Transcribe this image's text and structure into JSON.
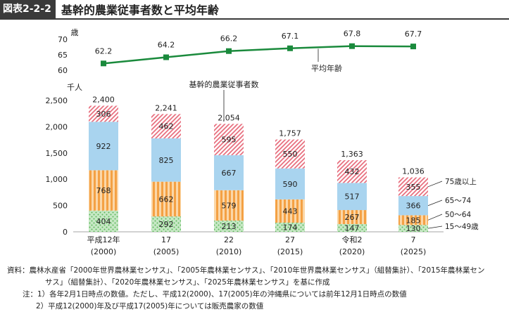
{
  "figure": {
    "label": "図表2-2-2",
    "title": "基幹的農業従事者数と平均年齢"
  },
  "colors": {
    "age75": "#e8707f",
    "age65_74": "#a9d4ef",
    "age50_64": "#f4a144",
    "age15_49": "#8ccd8a",
    "line": "#1a8a3c"
  },
  "chart_data": [
    {
      "type": "line",
      "unit_label": "歳",
      "ylim": [
        60,
        70
      ],
      "yticks": [
        "60",
        "65",
        "70"
      ],
      "categories": [
        "平成12年",
        "17",
        "22",
        "27",
        "令和2",
        "7"
      ],
      "series": [
        {
          "name": "平均年齢",
          "values": [
            62.2,
            64.2,
            66.2,
            67.1,
            67.8,
            67.7
          ]
        }
      ],
      "data_labels": [
        "62.2",
        "64.2",
        "66.2",
        "67.1",
        "67.8",
        "67.7"
      ]
    },
    {
      "type": "bar",
      "stacked": true,
      "title": "基幹的農業従事者数",
      "unit_label": "千人",
      "ylim": [
        0,
        2500
      ],
      "yticks": [
        "0",
        "500",
        "1,000",
        "1,500",
        "2,000",
        "2,500"
      ],
      "categories": [
        "平成12年",
        "17",
        "22",
        "27",
        "令和2",
        "7"
      ],
      "sub_categories": [
        "(2000)",
        "(2005)",
        "(2010)",
        "(2015)",
        "(2020)",
        "(2025)"
      ],
      "totals": [
        "2,400",
        "2,241",
        "2,054",
        "1,757",
        "1,363",
        "1,036"
      ],
      "series": [
        {
          "name": "15～49歳",
          "key": "age15_49",
          "values": [
            404,
            292,
            213,
            174,
            147,
            130
          ]
        },
        {
          "name": "50～64",
          "key": "age50_64",
          "values": [
            768,
            662,
            579,
            443,
            267,
            185
          ]
        },
        {
          "name": "65～74",
          "key": "age65_74",
          "values": [
            922,
            825,
            667,
            590,
            517,
            366
          ]
        },
        {
          "name": "75歳以上",
          "key": "age75",
          "values": [
            306,
            462,
            595,
            550,
            432,
            355
          ]
        }
      ]
    }
  ],
  "notes": {
    "source": "資料：農林水産省「2000年世界農林業センサス」、「2005年農林業センサス」、「2010年世界農林業センサス」（組替集計）、「2015年農林業セン",
    "source_cont": "サス」（組替集計）、「2020年農林業センサス」、「2025年農林業センサス」を基に作成",
    "note1": "注：1）各年2月1日時点の数値。ただし、平成12(2000)、17(2005)年の沖縄県については前年12月1日時点の数値",
    "note2": "2）平成12(2000)年及び平成17(2005)年については販売農家の数値"
  }
}
